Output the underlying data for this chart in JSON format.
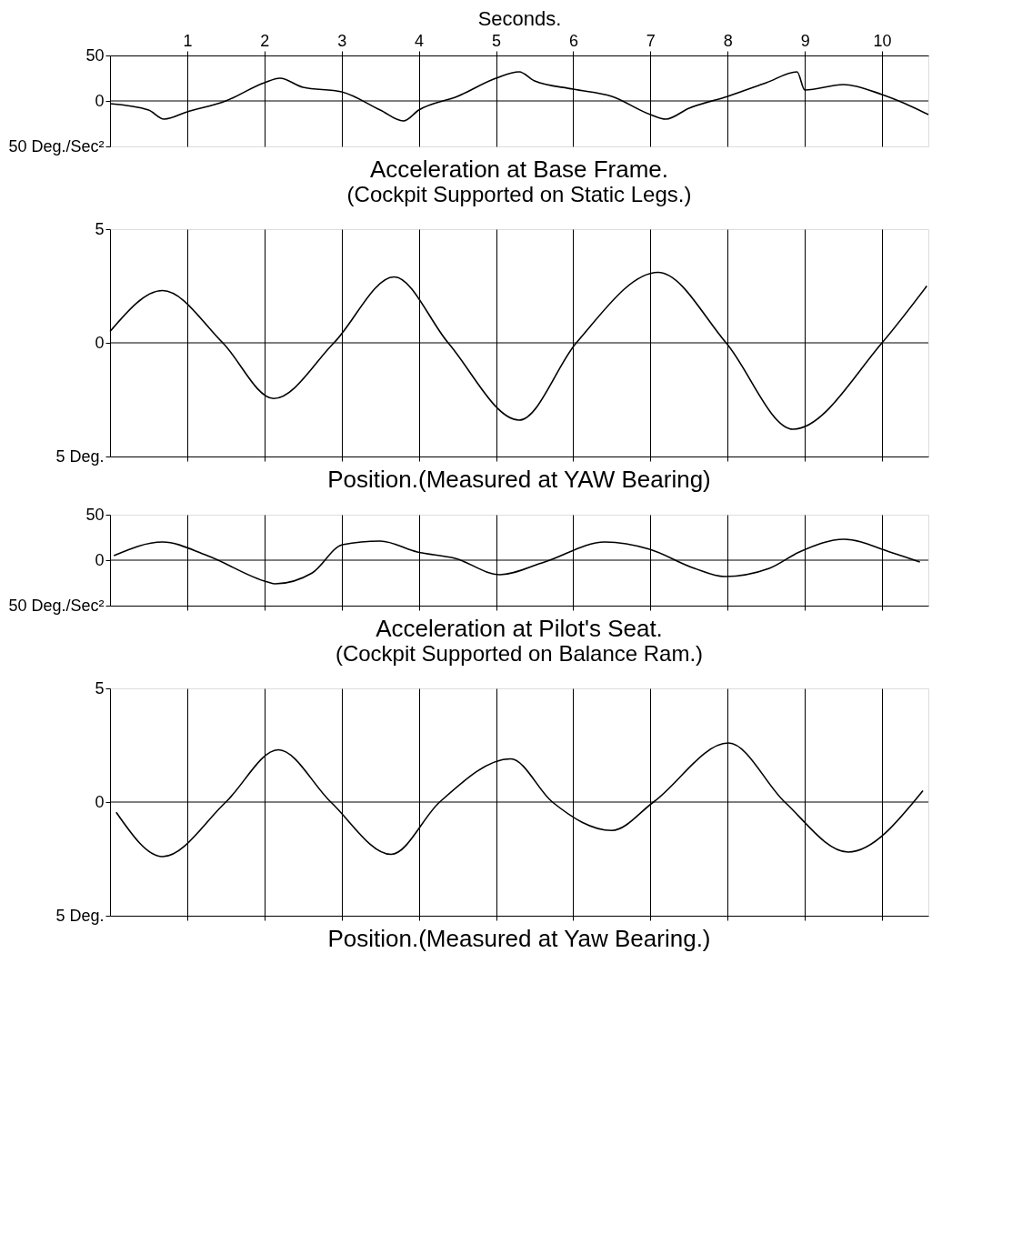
{
  "chart_data": [
    {
      "type": "line",
      "title": "Acceleration at Base Frame.",
      "subtitle": "(Cockpit Supported on Static Legs.)",
      "xlabel": "Seconds.",
      "xlim": [
        0,
        10.6
      ],
      "xticks": [
        1,
        2,
        3,
        4,
        5,
        6,
        7,
        8,
        9,
        10
      ],
      "ylim": [
        -50,
        50
      ],
      "yticks": [
        {
          "value": 50,
          "label": "50"
        },
        {
          "value": 0,
          "label": "0"
        },
        {
          "value": -50,
          "label": "50 Deg./Sec²"
        }
      ],
      "grid": "x",
      "ref_lines": [
        {
          "axis": "y",
          "value": 0,
          "color": "#000000"
        }
      ],
      "series": [
        {
          "color": "#000000",
          "x": [
            0,
            0.5,
            0.7,
            1,
            1.5,
            2,
            2.2,
            2.5,
            3,
            3.5,
            3.8,
            4,
            4.5,
            5,
            5.3,
            5.5,
            6,
            6.5,
            7,
            7.2,
            7.5,
            8,
            8.5,
            8.9,
            9,
            9.5,
            10,
            10.3,
            10.6
          ],
          "values": [
            -3,
            -10,
            -20,
            -12,
            0,
            20,
            25,
            15,
            10,
            -10,
            -22,
            -10,
            5,
            25,
            32,
            22,
            13,
            5,
            -15,
            -20,
            -8,
            5,
            20,
            32,
            12,
            18,
            7,
            -3,
            -15
          ]
        }
      ]
    },
    {
      "type": "line",
      "title": "Position.(Measured at YAW Bearing)",
      "xlim": [
        0,
        10.6
      ],
      "xticks": [
        1,
        2,
        3,
        4,
        5,
        6,
        7,
        8,
        9,
        10
      ],
      "ylim": [
        -5,
        5
      ],
      "yticks": [
        {
          "value": 5,
          "label": "5"
        },
        {
          "value": 0,
          "label": "0"
        },
        {
          "value": -5,
          "label": "5 Deg."
        }
      ],
      "grid": "x",
      "tick_labels": "y",
      "ref_lines": [
        {
          "axis": "y",
          "value": 0,
          "color": "#000000"
        }
      ],
      "series": [
        {
          "color": "#000000",
          "x": [
            0,
            0.68,
            1.46,
            2.12,
            2.9,
            3.68,
            4.38,
            5.3,
            6.04,
            7.1,
            7.98,
            8.85,
            10.0,
            10.58
          ],
          "values": [
            0.5,
            2.3,
            0,
            -2.45,
            0,
            2.9,
            0,
            -3.4,
            0,
            3.1,
            0,
            -3.8,
            0,
            2.5
          ]
        }
      ]
    },
    {
      "type": "line",
      "title": "Acceleration at Pilot's Seat.",
      "subtitle": "(Cockpit Supported on Balance Ram.)",
      "xlim": [
        0,
        10.6
      ],
      "xticks": [
        1,
        2,
        3,
        4,
        5,
        6,
        7,
        8,
        9,
        10
      ],
      "ylim": [
        -50,
        50
      ],
      "yticks": [
        {
          "value": 50,
          "label": "50"
        },
        {
          "value": 0,
          "label": "0"
        },
        {
          "value": -50,
          "label": "50 Deg./Sec²"
        }
      ],
      "grid": "x",
      "tick_labels": "y",
      "ref_lines": [
        {
          "axis": "y",
          "value": 0,
          "color": "#000000"
        }
      ],
      "series": [
        {
          "color": "#000000",
          "x": [
            0.05,
            0.68,
            1.26,
            2.04,
            2.14,
            2.62,
            3.01,
            3.5,
            3.98,
            4.47,
            5.05,
            5.63,
            6.41,
            6.99,
            7.57,
            7.96,
            8.54,
            8.93,
            9.51,
            10.1,
            10.49
          ],
          "values": [
            5,
            20,
            5,
            -24,
            -26,
            -14,
            17,
            21,
            9,
            2,
            -16,
            -2,
            20,
            12,
            -9,
            -18,
            -9,
            9,
            23,
            9,
            -2
          ]
        }
      ]
    },
    {
      "type": "line",
      "title": "Position.(Measured at Yaw Bearing.)",
      "xlim": [
        0,
        10.6
      ],
      "xticks": [
        1,
        2,
        3,
        4,
        5,
        6,
        7,
        8,
        9,
        10
      ],
      "ylim": [
        -5,
        5
      ],
      "yticks": [
        {
          "value": 5,
          "label": "5"
        },
        {
          "value": 0,
          "label": "0"
        },
        {
          "value": -5,
          "label": "5 Deg."
        }
      ],
      "grid": "x",
      "tick_labels": "y",
      "ref_lines": [
        {
          "axis": "y",
          "value": 0,
          "color": "#000000"
        }
      ],
      "series": [
        {
          "color": "#000000",
          "x": [
            0.08,
            0.68,
            1.5,
            2.18,
            2.86,
            3.64,
            4.27,
            5.19,
            5.73,
            6.5,
            7.04,
            8.01,
            8.74,
            9.56,
            10.53
          ],
          "values": [
            -0.45,
            -2.4,
            0,
            2.3,
            0,
            -2.3,
            0,
            1.9,
            0,
            -1.25,
            0,
            2.6,
            0,
            -2.2,
            0.5
          ]
        }
      ]
    }
  ]
}
